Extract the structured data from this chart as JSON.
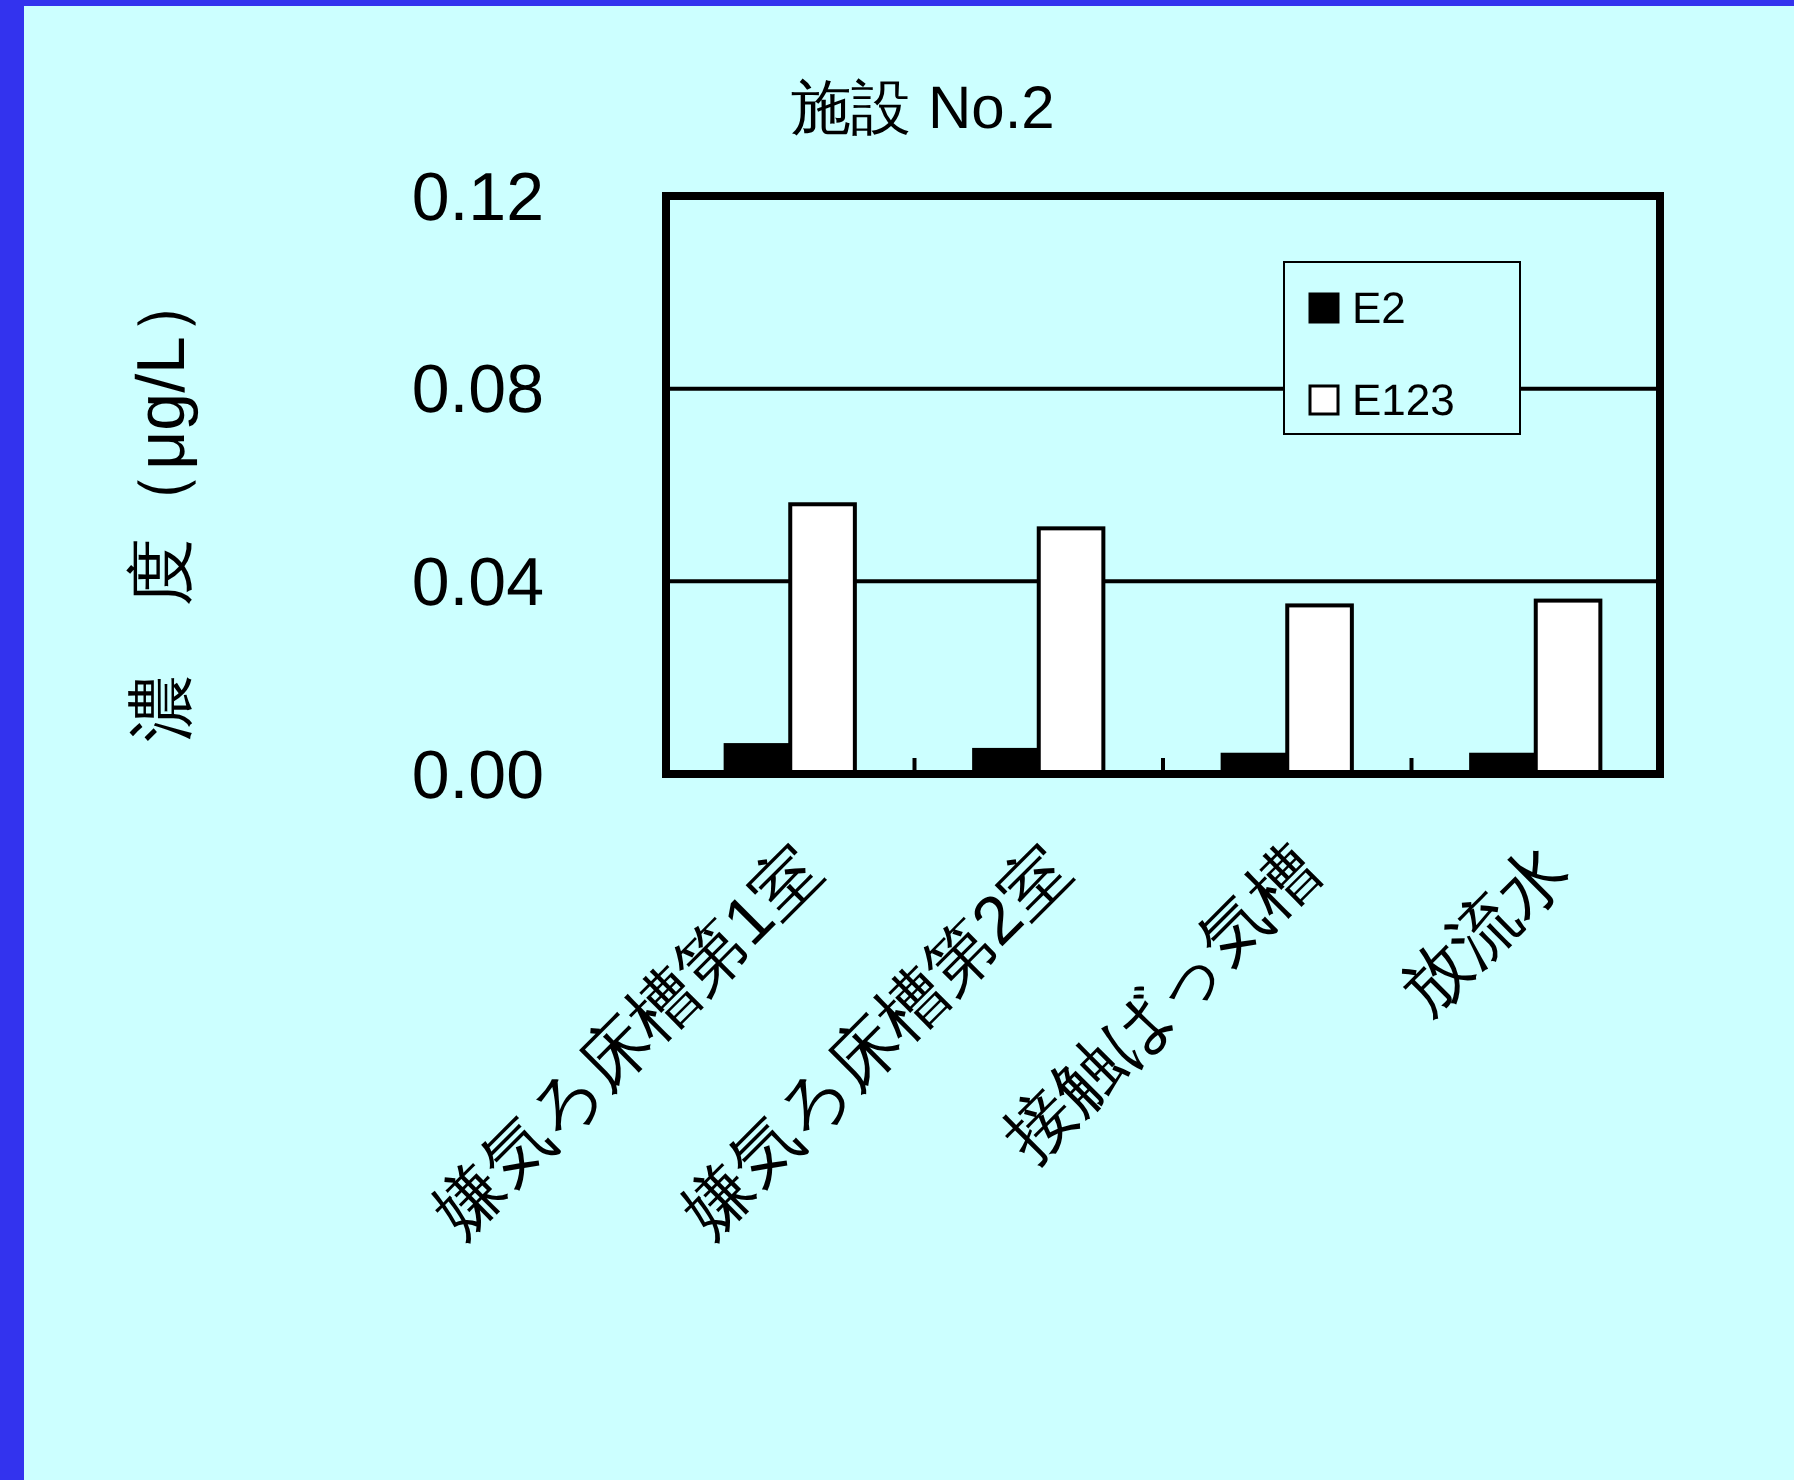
{
  "chart_data": {
    "type": "bar",
    "title": "施設 No.2",
    "ylabel": "濃　度（μg/L）",
    "categories": [
      "嫌気ろ床槽第1室",
      "嫌気ろ床槽第2室",
      "接触ばっ気槽",
      "放流水"
    ],
    "series": [
      {
        "name": "E2",
        "color": "#000000",
        "values": [
          0.006,
          0.005,
          0.004,
          0.004
        ]
      },
      {
        "name": "E123",
        "color": "#ffffff",
        "values": [
          0.056,
          0.051,
          0.035,
          0.036
        ]
      }
    ],
    "ylim": [
      0,
      0.12
    ],
    "yticks": [
      {
        "value": 0,
        "label": "0.00"
      },
      {
        "value": 0.04,
        "label": "0.04"
      },
      {
        "value": 0.08,
        "label": "0.08"
      },
      {
        "value": 0.12,
        "label": "0.12"
      }
    ],
    "grid": "y",
    "legend": "top right"
  }
}
